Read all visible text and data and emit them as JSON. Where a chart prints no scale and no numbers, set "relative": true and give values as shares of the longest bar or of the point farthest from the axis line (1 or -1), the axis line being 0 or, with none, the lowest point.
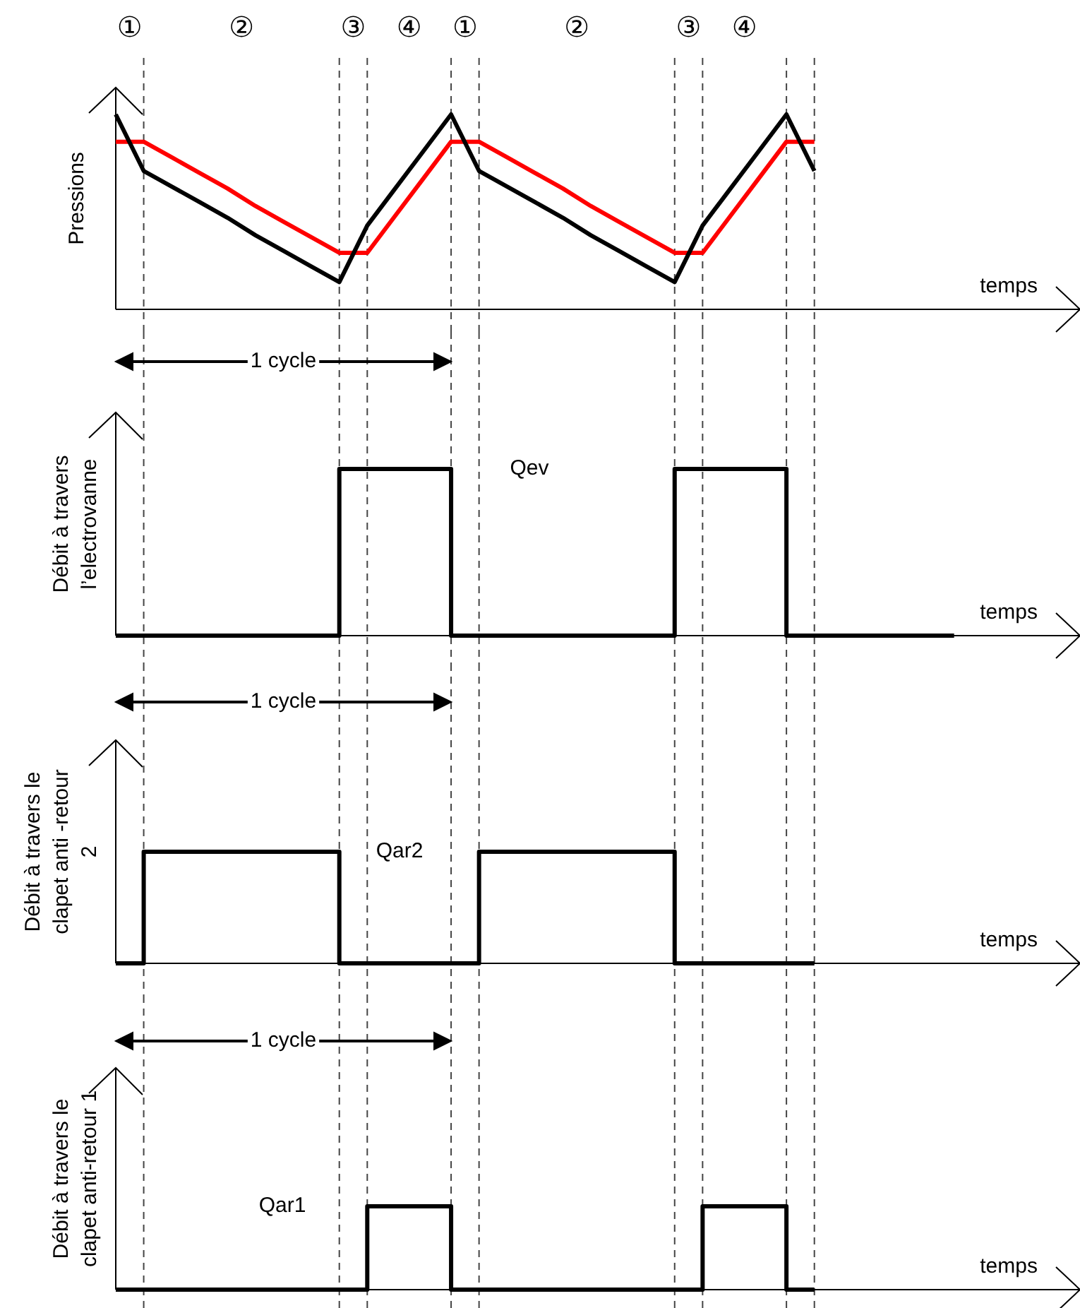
{
  "chart_data": [
    {
      "type": "line",
      "relative": true,
      "ylabel": "Pressions",
      "xlabel": "temps",
      "tick_labels": false,
      "marker": "none",
      "grid": "x",
      "categories": [
        null,
        null,
        null,
        null,
        null,
        null,
        null,
        null,
        null,
        null,
        null,
        null,
        null,
        null,
        null,
        null,
        null,
        null,
        null,
        null,
        null,
        null,
        null,
        null,
        null,
        null,
        null,
        null,
        null,
        null,
        null,
        null,
        null,
        null,
        null
      ],
      "series": [
        {
          "color": "#000000",
          "values": [
            1,
            0.71,
            0.63,
            0.55,
            0.47,
            0.38,
            0.3,
            0.22,
            0.14,
            0.43,
            0.62,
            0.81,
            1,
            0.71,
            0.63,
            0.55,
            0.47,
            0.38,
            0.3,
            0.22,
            0.14,
            0.43,
            0.62,
            0.81,
            1,
            0.71,
            null,
            null,
            null,
            null,
            null,
            null,
            null,
            null,
            null
          ]
        },
        {
          "color": "#ff0000",
          "values": [
            0.86,
            0.86,
            0.78,
            0.7,
            0.62,
            0.53,
            0.45,
            0.37,
            0.29,
            0.29,
            0.48,
            0.67,
            0.86,
            0.86,
            0.78,
            0.7,
            0.62,
            0.53,
            0.45,
            0.37,
            0.29,
            0.29,
            0.48,
            0.67,
            0.86,
            0.86,
            null,
            null,
            null,
            null,
            null,
            null,
            null,
            null,
            null
          ]
        }
      ],
      "annotations": [
        "①",
        "②",
        "③",
        "④",
        "①",
        "②",
        "③",
        "④"
      ]
    },
    {
      "type": "step",
      "relative": true,
      "ylabel": "Débit à travers\nl’electrovanne",
      "xlabel": "temps",
      "tick_labels": false,
      "marker": "none",
      "grid": "x",
      "categories": [
        null,
        null,
        null,
        null,
        null,
        null,
        null,
        null,
        null,
        null,
        null,
        null,
        null,
        null,
        null,
        null,
        null,
        null,
        null,
        null,
        null,
        null,
        null,
        null,
        null,
        null,
        null,
        null,
        null,
        null,
        null,
        null,
        null,
        null,
        null
      ],
      "series": [
        {
          "name": "Qev",
          "color": "#000000",
          "values": [
            0,
            0,
            0,
            0,
            0,
            0,
            0,
            0,
            1,
            1,
            1,
            1,
            0,
            0,
            0,
            0,
            0,
            0,
            0,
            0,
            1,
            1,
            1,
            1,
            0,
            0,
            0,
            0,
            0,
            0,
            0,
            null,
            null,
            null,
            null
          ]
        }
      ],
      "annotations": [
        "1 cycle"
      ]
    },
    {
      "type": "step",
      "relative": true,
      "ylabel": "Débit à travers le\nclapet anti -retour\n2",
      "xlabel": "temps",
      "tick_labels": false,
      "marker": "none",
      "grid": "x",
      "categories": [
        null,
        null,
        null,
        null,
        null,
        null,
        null,
        null,
        null,
        null,
        null,
        null,
        null,
        null,
        null,
        null,
        null,
        null,
        null,
        null,
        null,
        null,
        null,
        null,
        null,
        null,
        null,
        null,
        null,
        null,
        null,
        null,
        null,
        null,
        null
      ],
      "series": [
        {
          "name": "Qar2",
          "color": "#000000",
          "values": [
            0,
            1,
            1,
            1,
            1,
            1,
            1,
            1,
            0,
            0,
            0,
            0,
            0,
            1,
            1,
            1,
            1,
            1,
            1,
            1,
            0,
            0,
            0,
            0,
            0,
            0,
            null,
            null,
            null,
            null,
            null,
            null,
            null,
            null,
            null
          ]
        }
      ],
      "annotations": [
        "1 cycle"
      ]
    },
    {
      "type": "step",
      "relative": true,
      "ylabel": "Débit à travers le\nclapet anti-retour 1",
      "xlabel": "temps",
      "tick_labels": false,
      "marker": "none",
      "grid": "x",
      "categories": [
        null,
        null,
        null,
        null,
        null,
        null,
        null,
        null,
        null,
        null,
        null,
        null,
        null,
        null,
        null,
        null,
        null,
        null,
        null,
        null,
        null,
        null,
        null,
        null,
        null,
        null,
        null,
        null,
        null,
        null,
        null,
        null,
        null,
        null,
        null
      ],
      "series": [
        {
          "name": "Qar1",
          "color": "#000000",
          "values": [
            0,
            0,
            0,
            0,
            0,
            0,
            0,
            0,
            0,
            1,
            1,
            1,
            0,
            0,
            0,
            0,
            0,
            0,
            0,
            0,
            0,
            1,
            1,
            1,
            0,
            0,
            null,
            null,
            null,
            null,
            null,
            null,
            null,
            null,
            null
          ]
        }
      ],
      "annotations": [
        "1 cycle"
      ]
    }
  ]
}
